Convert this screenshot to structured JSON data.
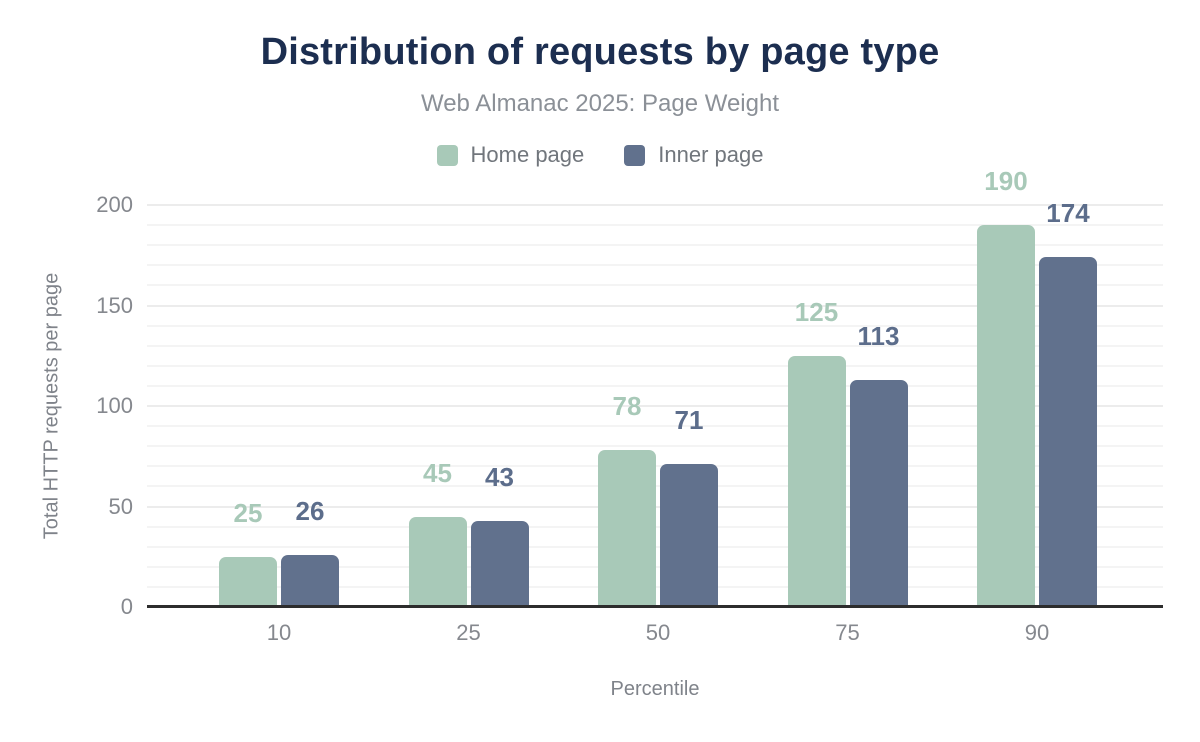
{
  "header": {
    "title": "Distribution of requests by page type",
    "subtitle": "Web Almanac 2025: Page Weight"
  },
  "legend": [
    {
      "label": "Home page",
      "color": "#a8c9b8"
    },
    {
      "label": "Inner page",
      "color": "#61718d"
    }
  ],
  "colors": {
    "title": "#1c2e50",
    "subtitle": "#8b9097",
    "axis_text": "#85888e",
    "axis_line": "#2d2d2d",
    "gridline_minor": "#f4f4f4",
    "gridline_major": "#ececec",
    "home_page": "#a8c9b8",
    "inner_page": "#61718d"
  },
  "chart_data": {
    "type": "bar",
    "title": "Distribution of requests by page type",
    "subtitle": "Web Almanac 2025: Page Weight",
    "categories": [
      "10",
      "25",
      "50",
      "75",
      "90"
    ],
    "series": [
      {
        "name": "Home page",
        "slug": "home-page",
        "color": "#a8c9b8",
        "label_color": "#a8c9b8",
        "values": [
          25,
          45,
          78,
          125,
          190
        ]
      },
      {
        "name": "Inner page",
        "slug": "inner-page",
        "color": "#61718d",
        "label_color": "#5c6d8b",
        "values": [
          26,
          43,
          71,
          113,
          174
        ]
      }
    ],
    "xlabel": "Percentile",
    "ylabel": "Total HTTP requests per page",
    "ylim": [
      0,
      200
    ],
    "yticks": [
      0,
      50,
      100,
      150,
      200
    ],
    "grid": {
      "horizontal": true,
      "minor_step": 10,
      "major_step": 50
    },
    "legend_position": "top",
    "value_labels": true
  }
}
